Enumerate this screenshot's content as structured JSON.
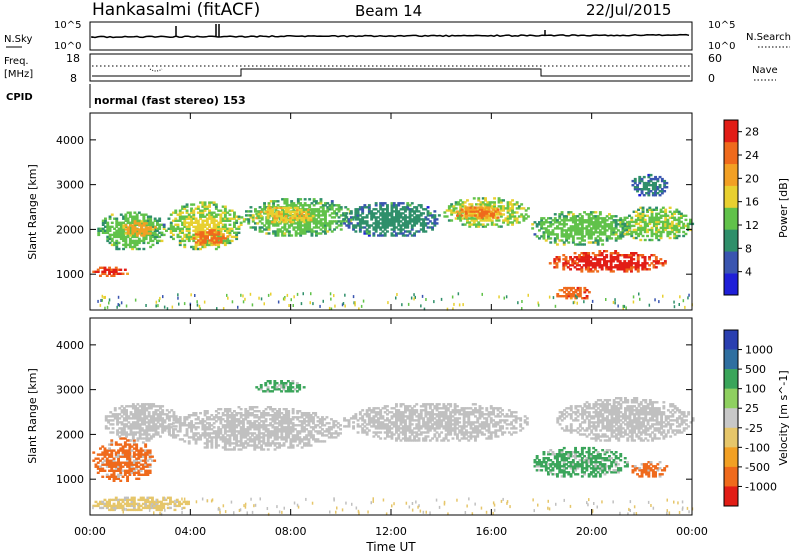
{
  "header": {
    "title": "Hankasalmi (fitACF)",
    "beam": "Beam 14",
    "date": "22/Jul/2015"
  },
  "params": {
    "nsky_label": "N.Sky",
    "nsearch_label": "N.Search",
    "count_top": "10^5",
    "count_bottom": "10^0",
    "freq_label_1": "Freq.",
    "freq_label_2": "[MHz]",
    "freq_top": "18",
    "freq_bottom": "8",
    "nave_top": "60",
    "nave_bottom": "0",
    "nave_label": "Nave",
    "cpid_label": "CPID",
    "cpid_text": "normal (fast stereo) 153"
  },
  "colors": {
    "power": [
      "#1f1fd8",
      "#3a55b0",
      "#2f8f6a",
      "#61c24a",
      "#e8d030",
      "#f2a024",
      "#ef6a1c",
      "#e21d16"
    ],
    "velocity": [
      "#e21d16",
      "#ef6a1c",
      "#f2a024",
      "#e6c66a",
      "#c8c8c8",
      "#8fd060",
      "#3aa55a",
      "#2f6fa0",
      "#2a3fb0"
    ],
    "ground_scatter": "#c0c0c0"
  },
  "chart_data": [
    {
      "type": "heatmap",
      "name": "power-panel",
      "ylabel": "Slant Range [km]",
      "xlabel": "Time UT",
      "x_ticks": [
        "00:00",
        "04:00",
        "08:00",
        "12:00",
        "16:00",
        "20:00",
        "00:00"
      ],
      "xlim_hours": [
        0,
        24
      ],
      "y_ticks": [
        1000,
        2000,
        3000,
        4000
      ],
      "ylim": [
        200,
        4600
      ],
      "colorbar": {
        "label": "Power [dB]",
        "ticks": [
          4,
          8,
          12,
          16,
          20,
          24,
          28
        ],
        "range": [
          0,
          30
        ]
      },
      "bands": [
        {
          "t0": 0.0,
          "t1": 1.5,
          "r0": 900,
          "r1": 1150,
          "value": 26
        },
        {
          "t0": 0.2,
          "t1": 3.0,
          "r0": 1500,
          "r1": 2400,
          "value": 12
        },
        {
          "t0": 1.2,
          "t1": 2.6,
          "r0": 1800,
          "r1": 2200,
          "value": 20
        },
        {
          "t0": 3.0,
          "t1": 6.0,
          "r0": 1500,
          "r1": 2600,
          "value": 14
        },
        {
          "t0": 4.0,
          "t1": 5.5,
          "r0": 1600,
          "r1": 2000,
          "value": 23
        },
        {
          "t0": 6.0,
          "t1": 10.5,
          "r0": 1800,
          "r1": 2700,
          "value": 12
        },
        {
          "t0": 6.5,
          "t1": 9.0,
          "r0": 2100,
          "r1": 2500,
          "value": 17
        },
        {
          "t0": 10.0,
          "t1": 14.0,
          "r0": 1800,
          "r1": 2600,
          "value": 8
        },
        {
          "t0": 14.0,
          "t1": 17.5,
          "r0": 2000,
          "r1": 2700,
          "value": 14
        },
        {
          "t0": 14.5,
          "t1": 16.5,
          "r0": 2200,
          "r1": 2500,
          "value": 22
        },
        {
          "t0": 17.5,
          "t1": 21.5,
          "r0": 1600,
          "r1": 2400,
          "value": 12
        },
        {
          "t0": 18.2,
          "t1": 23.0,
          "r0": 1000,
          "r1": 1500,
          "value": 27
        },
        {
          "t0": 18.5,
          "t1": 20.0,
          "r0": 400,
          "r1": 700,
          "value": 25
        },
        {
          "t0": 21.0,
          "t1": 24.0,
          "r0": 1700,
          "r1": 2500,
          "value": 13
        },
        {
          "t0": 21.5,
          "t1": 23.0,
          "r0": 2700,
          "r1": 3200,
          "value": 6
        }
      ]
    },
    {
      "type": "heatmap",
      "name": "velocity-panel",
      "ylabel": "Slant Range [km]",
      "xlabel": "Time UT",
      "x_ticks": [
        "00:00",
        "04:00",
        "08:00",
        "12:00",
        "16:00",
        "20:00",
        "00:00"
      ],
      "xlim_hours": [
        0,
        24
      ],
      "y_ticks": [
        1000,
        2000,
        3000,
        4000
      ],
      "ylim": [
        200,
        4600
      ],
      "colorbar": {
        "label": "Velocity [m s^-1]",
        "ticks": [
          1000,
          500,
          100,
          25,
          -25,
          -100,
          -500,
          -1000
        ]
      },
      "bands": [
        {
          "t0": 0.0,
          "t1": 2.6,
          "r0": 900,
          "r1": 1900,
          "value": -500
        },
        {
          "t0": 0.5,
          "t1": 3.5,
          "r0": 1800,
          "r1": 2700,
          "value": 0
        },
        {
          "t0": 3.0,
          "t1": 10.0,
          "r0": 1600,
          "r1": 2600,
          "value": 0
        },
        {
          "t0": 6.5,
          "t1": 8.5,
          "r0": 2900,
          "r1": 3200,
          "value": 500
        },
        {
          "t0": 10.0,
          "t1": 17.5,
          "r0": 1800,
          "r1": 2700,
          "value": 0
        },
        {
          "t0": 17.5,
          "t1": 21.5,
          "r0": 1000,
          "r1": 1700,
          "value": 150
        },
        {
          "t0": 18.5,
          "t1": 24.0,
          "r0": 1800,
          "r1": 2800,
          "value": 0
        },
        {
          "t0": 21.5,
          "t1": 23.0,
          "r0": 1000,
          "r1": 1400,
          "value": -500
        },
        {
          "t0": 0.0,
          "t1": 4.0,
          "r0": 250,
          "r1": 600,
          "value": -70
        }
      ]
    }
  ]
}
